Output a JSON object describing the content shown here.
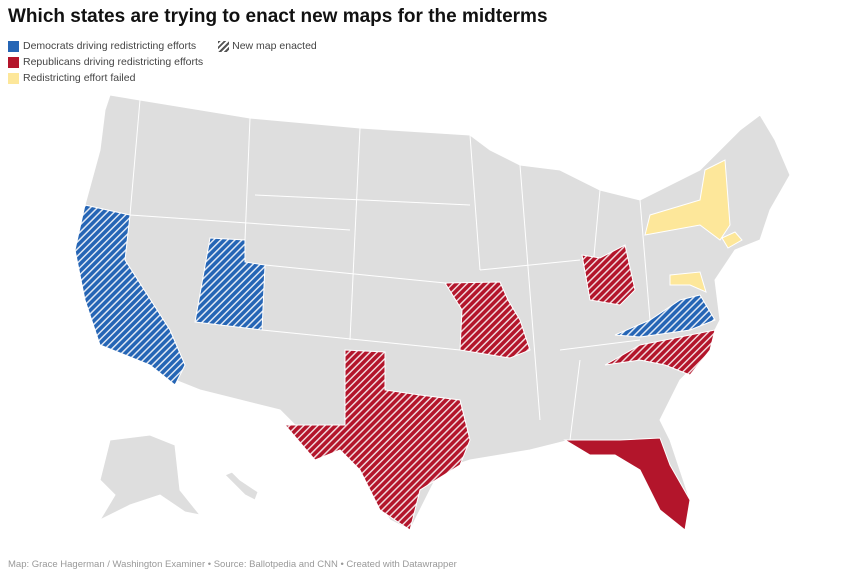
{
  "title": "Which states are trying to enact new maps for the midterms",
  "legend": [
    {
      "label": "Democrats driving redistricting efforts",
      "color": "#2565b5"
    },
    {
      "label": "Republicans driving redistricting efforts",
      "color": "#b3152b"
    },
    {
      "label": "Redistricting effort failed",
      "color": "#fde79a"
    }
  ],
  "pattern_legend": "New map enacted",
  "states": {
    "democrat_hatched": [
      "California",
      "Utah",
      "Virginia"
    ],
    "republican_hatched": [
      "Texas",
      "Missouri",
      "Ohio",
      "North Carolina"
    ],
    "republican_solid": [
      "Florida"
    ],
    "failed": [
      "New York",
      "Maryland",
      "New Jersey"
    ]
  },
  "footer": "Map: Grace Hagerman / Washington Examiner • Source: Ballotpedia and CNN • Created with Datawrapper"
}
